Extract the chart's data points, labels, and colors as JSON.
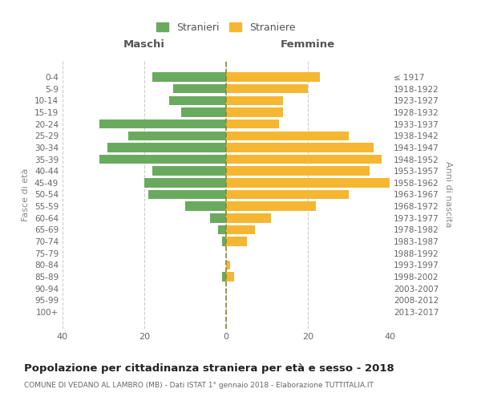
{
  "age_groups": [
    "0-4",
    "5-9",
    "10-14",
    "15-19",
    "20-24",
    "25-29",
    "30-34",
    "35-39",
    "40-44",
    "45-49",
    "50-54",
    "55-59",
    "60-64",
    "65-69",
    "70-74",
    "75-79",
    "80-84",
    "85-89",
    "90-94",
    "95-99",
    "100+"
  ],
  "birth_years": [
    "2013-2017",
    "2008-2012",
    "2003-2007",
    "1998-2002",
    "1993-1997",
    "1988-1992",
    "1983-1987",
    "1978-1982",
    "1973-1977",
    "1968-1972",
    "1963-1967",
    "1958-1962",
    "1953-1957",
    "1948-1952",
    "1943-1947",
    "1938-1942",
    "1933-1937",
    "1928-1932",
    "1923-1927",
    "1918-1922",
    "≤ 1917"
  ],
  "maschi": [
    18,
    13,
    14,
    11,
    31,
    24,
    29,
    31,
    18,
    20,
    19,
    10,
    4,
    2,
    1,
    0,
    0,
    1,
    0,
    0,
    0
  ],
  "femmine": [
    23,
    20,
    14,
    14,
    13,
    30,
    36,
    38,
    35,
    40,
    30,
    22,
    11,
    7,
    5,
    0,
    1,
    2,
    0,
    0,
    0
  ],
  "color_maschi": "#6aaa5e",
  "color_femmine": "#f5b731",
  "title": "Popolazione per cittadinanza straniera per età e sesso - 2018",
  "subtitle": "COMUNE DI VEDANO AL LAMBRO (MB) - Dati ISTAT 1° gennaio 2018 - Elaborazione TUTTITALIA.IT",
  "xlabel_left": "Maschi",
  "xlabel_right": "Femmine",
  "ylabel_left": "Fasce di età",
  "ylabel_right": "Anni di nascita",
  "legend_maschi": "Stranieri",
  "legend_femmine": "Straniere",
  "xlim": 40,
  "background_color": "#ffffff",
  "grid_color": "#cccccc"
}
